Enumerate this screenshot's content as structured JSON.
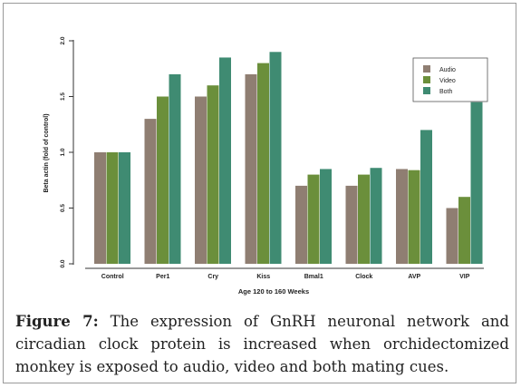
{
  "chart_data": {
    "type": "bar",
    "categories": [
      "Control",
      "Per1",
      "Cry",
      "Kiss",
      "Bmal1",
      "Clock",
      "AVP",
      "VIP"
    ],
    "series": [
      {
        "name": "Audio",
        "color": "#8f7e72",
        "values": [
          1.0,
          1.3,
          1.5,
          1.7,
          0.7,
          0.7,
          0.85,
          0.5
        ]
      },
      {
        "name": "Video",
        "color": "#6b8f3b",
        "values": [
          1.0,
          1.5,
          1.6,
          1.8,
          0.8,
          0.8,
          0.84,
          0.6
        ]
      },
      {
        "name": "Both",
        "color": "#3f8b72",
        "values": [
          1.0,
          1.7,
          1.85,
          1.9,
          0.85,
          0.86,
          1.2,
          1.45
        ]
      }
    ],
    "xlabel": "Age 120 to 160 Weeks",
    "ylabel": "Beta actin (fold of control)",
    "ylim": [
      0,
      2.0
    ],
    "yticks": [
      "0.0",
      "0.5",
      "1.0",
      "1.5",
      "2.0"
    ],
    "legend_position": "top-right"
  },
  "caption": {
    "label": "Figure 7:",
    "text": " The expression of GnRH neuronal network and circadian clock protein is increased when orchidectomized monkey is exposed to audio, video and both mating cues."
  }
}
